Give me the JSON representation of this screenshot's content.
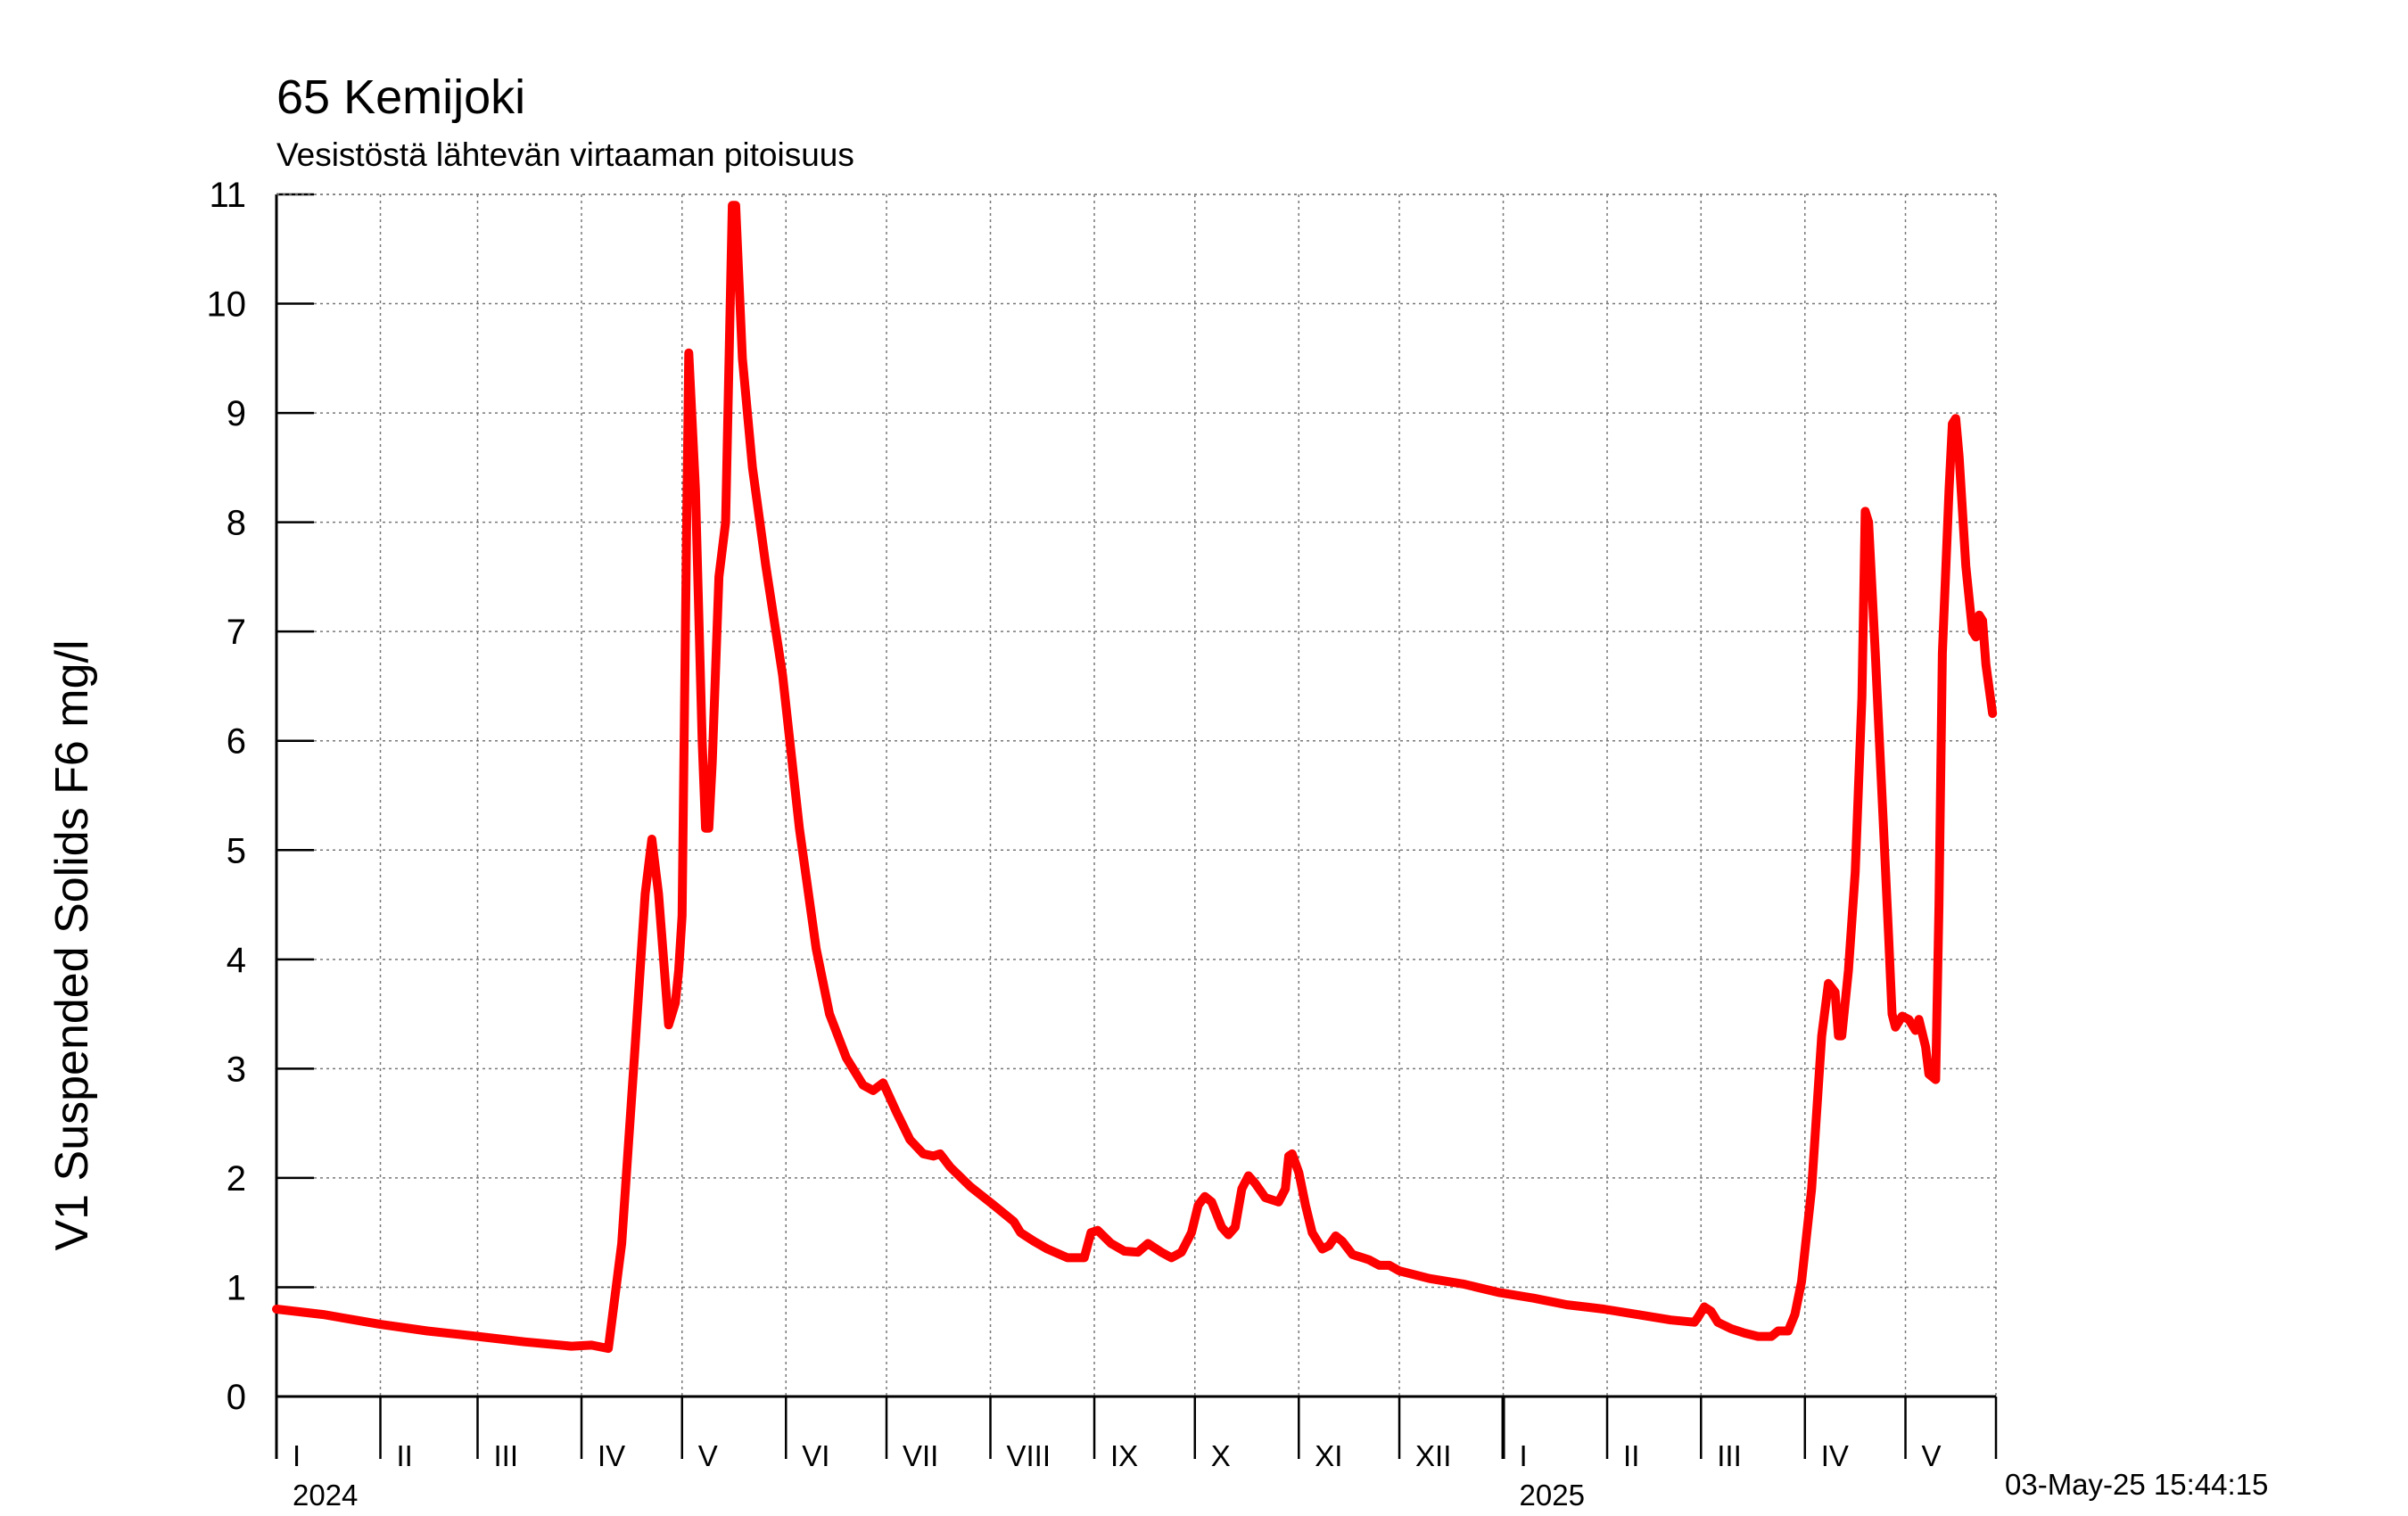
{
  "chart_data": {
    "type": "line",
    "title": "65 Kemijoki",
    "subtitle": "Vesistöstä lähtevän virtaaman pitoisuus",
    "ylabel": "V1 Suspended Solids F6 mg/l",
    "xlabel": "",
    "ylim": [
      0,
      11
    ],
    "yticks": [
      0,
      1,
      2,
      3,
      4,
      5,
      6,
      7,
      8,
      9,
      10,
      11
    ],
    "xlim": [
      "2024-01-01",
      "2025-05-03"
    ],
    "grid": true,
    "month_labels": [
      {
        "label": "I",
        "date": "2024-01-01"
      },
      {
        "label": "II",
        "date": "2024-02-01"
      },
      {
        "label": "III",
        "date": "2024-03-01"
      },
      {
        "label": "IV",
        "date": "2024-04-01"
      },
      {
        "label": "V",
        "date": "2024-05-01"
      },
      {
        "label": "VI",
        "date": "2024-06-01"
      },
      {
        "label": "VII",
        "date": "2024-07-01"
      },
      {
        "label": "VIII",
        "date": "2024-08-01"
      },
      {
        "label": "IX",
        "date": "2024-09-01"
      },
      {
        "label": "X",
        "date": "2024-10-01"
      },
      {
        "label": "XI",
        "date": "2024-11-01"
      },
      {
        "label": "XII",
        "date": "2024-12-01"
      },
      {
        "label": "I",
        "date": "2025-01-01"
      },
      {
        "label": "II",
        "date": "2025-02-01"
      },
      {
        "label": "III",
        "date": "2025-03-01"
      },
      {
        "label": "IV",
        "date": "2025-04-01"
      },
      {
        "label": "V",
        "date": "2025-05-01"
      }
    ],
    "year_labels": [
      {
        "label": "2024",
        "date": "2024-01-01"
      },
      {
        "label": "2025",
        "date": "2025-01-01"
      }
    ],
    "timestamp": "03-May-25 15:44:15",
    "series": [
      {
        "color": "#ff0000",
        "points": [
          [
            "2024-01-01",
            0.8
          ],
          [
            "2024-01-15",
            0.75
          ],
          [
            "2024-02-01",
            0.66
          ],
          [
            "2024-02-15",
            0.6
          ],
          [
            "2024-03-01",
            0.55
          ],
          [
            "2024-03-15",
            0.5
          ],
          [
            "2024-03-29",
            0.46
          ],
          [
            "2024-04-04",
            0.47
          ],
          [
            "2024-04-09",
            0.44
          ],
          [
            "2024-04-13",
            1.4
          ],
          [
            "2024-04-17",
            3.2
          ],
          [
            "2024-04-20",
            4.6
          ],
          [
            "2024-04-22",
            5.1
          ],
          [
            "2024-04-24",
            4.6
          ],
          [
            "2024-04-27",
            3.4
          ],
          [
            "2024-04-29",
            3.6
          ],
          [
            "2024-04-30",
            3.9
          ],
          [
            "2024-05-01",
            4.4
          ],
          [
            "2024-05-02",
            7.0
          ],
          [
            "2024-05-03",
            9.55
          ],
          [
            "2024-05-05",
            8.3
          ],
          [
            "2024-05-07",
            6.0
          ],
          [
            "2024-05-08",
            5.2
          ],
          [
            "2024-05-09",
            5.2
          ],
          [
            "2024-05-10",
            5.8
          ],
          [
            "2024-05-12",
            7.5
          ],
          [
            "2024-05-14",
            8.0
          ],
          [
            "2024-05-16",
            10.9
          ],
          [
            "2024-05-17",
            10.9
          ],
          [
            "2024-05-19",
            9.5
          ],
          [
            "2024-05-22",
            8.5
          ],
          [
            "2024-05-26",
            7.6
          ],
          [
            "2024-05-31",
            6.6
          ],
          [
            "2024-06-05",
            5.2
          ],
          [
            "2024-06-10",
            4.1
          ],
          [
            "2024-06-14",
            3.5
          ],
          [
            "2024-06-19",
            3.1
          ],
          [
            "2024-06-24",
            2.85
          ],
          [
            "2024-06-27",
            2.8
          ],
          [
            "2024-06-30",
            2.87
          ],
          [
            "2024-07-04",
            2.6
          ],
          [
            "2024-07-08",
            2.35
          ],
          [
            "2024-07-12",
            2.22
          ],
          [
            "2024-07-15",
            2.2
          ],
          [
            "2024-07-17",
            2.22
          ],
          [
            "2024-07-20",
            2.1
          ],
          [
            "2024-07-26",
            1.92
          ],
          [
            "2024-08-02",
            1.75
          ],
          [
            "2024-08-08",
            1.6
          ],
          [
            "2024-08-10",
            1.5
          ],
          [
            "2024-08-14",
            1.42
          ],
          [
            "2024-08-18",
            1.35
          ],
          [
            "2024-08-24",
            1.27
          ],
          [
            "2024-08-29",
            1.27
          ],
          [
            "2024-08-31",
            1.5
          ],
          [
            "2024-09-02",
            1.52
          ],
          [
            "2024-09-06",
            1.4
          ],
          [
            "2024-09-10",
            1.33
          ],
          [
            "2024-09-14",
            1.32
          ],
          [
            "2024-09-17",
            1.4
          ],
          [
            "2024-09-21",
            1.32
          ],
          [
            "2024-09-24",
            1.27
          ],
          [
            "2024-09-27",
            1.32
          ],
          [
            "2024-09-30",
            1.5
          ],
          [
            "2024-10-02",
            1.75
          ],
          [
            "2024-10-04",
            1.83
          ],
          [
            "2024-10-06",
            1.78
          ],
          [
            "2024-10-09",
            1.55
          ],
          [
            "2024-10-11",
            1.48
          ],
          [
            "2024-10-13",
            1.55
          ],
          [
            "2024-10-15",
            1.9
          ],
          [
            "2024-10-17",
            2.02
          ],
          [
            "2024-10-19",
            1.95
          ],
          [
            "2024-10-22",
            1.82
          ],
          [
            "2024-10-26",
            1.78
          ],
          [
            "2024-10-28",
            1.9
          ],
          [
            "2024-10-29",
            2.2
          ],
          [
            "2024-10-30",
            2.22
          ],
          [
            "2024-11-01",
            2.05
          ],
          [
            "2024-11-03",
            1.75
          ],
          [
            "2024-11-05",
            1.5
          ],
          [
            "2024-11-08",
            1.35
          ],
          [
            "2024-11-10",
            1.38
          ],
          [
            "2024-11-12",
            1.47
          ],
          [
            "2024-11-14",
            1.42
          ],
          [
            "2024-11-17",
            1.3
          ],
          [
            "2024-11-22",
            1.25
          ],
          [
            "2024-11-25",
            1.2
          ],
          [
            "2024-11-28",
            1.2
          ],
          [
            "2024-12-01",
            1.15
          ],
          [
            "2024-12-10",
            1.08
          ],
          [
            "2024-12-20",
            1.03
          ],
          [
            "2024-12-31",
            0.95
          ],
          [
            "2025-01-10",
            0.9
          ],
          [
            "2025-01-20",
            0.84
          ],
          [
            "2025-01-31",
            0.8
          ],
          [
            "2025-02-10",
            0.75
          ],
          [
            "2025-02-20",
            0.7
          ],
          [
            "2025-02-27",
            0.68
          ],
          [
            "2025-02-28",
            0.72
          ],
          [
            "2025-03-02",
            0.82
          ],
          [
            "2025-03-04",
            0.78
          ],
          [
            "2025-03-06",
            0.68
          ],
          [
            "2025-03-10",
            0.62
          ],
          [
            "2025-03-14",
            0.58
          ],
          [
            "2025-03-18",
            0.55
          ],
          [
            "2025-03-22",
            0.55
          ],
          [
            "2025-03-24",
            0.6
          ],
          [
            "2025-03-27",
            0.6
          ],
          [
            "2025-03-29",
            0.75
          ],
          [
            "2025-03-31",
            1.05
          ],
          [
            "2025-04-03",
            1.9
          ],
          [
            "2025-04-06",
            3.3
          ],
          [
            "2025-04-08",
            3.78
          ],
          [
            "2025-04-10",
            3.7
          ],
          [
            "2025-04-11",
            3.3
          ],
          [
            "2025-04-12",
            3.3
          ],
          [
            "2025-04-14",
            3.9
          ],
          [
            "2025-04-16",
            4.8
          ],
          [
            "2025-04-18",
            6.4
          ],
          [
            "2025-04-19",
            8.1
          ],
          [
            "2025-04-20",
            8.0
          ],
          [
            "2025-04-22",
            6.8
          ],
          [
            "2025-04-24",
            5.5
          ],
          [
            "2025-04-26",
            4.2
          ],
          [
            "2025-04-27",
            3.5
          ],
          [
            "2025-04-28",
            3.38
          ],
          [
            "2025-04-30",
            3.48
          ],
          [
            "2025-05-02",
            3.45
          ],
          [
            "2025-05-04",
            3.35
          ],
          [
            "2025-05-05",
            3.45
          ],
          [
            "2025-05-07",
            3.2
          ],
          [
            "2025-05-08",
            2.95
          ],
          [
            "2025-05-10",
            2.9
          ],
          [
            "2025-05-11",
            4.5
          ],
          [
            "2025-05-12",
            6.8
          ],
          [
            "2025-05-14",
            8.3
          ],
          [
            "2025-05-15",
            8.9
          ],
          [
            "2025-05-16",
            8.95
          ],
          [
            "2025-05-17",
            8.6
          ],
          [
            "2025-05-19",
            7.6
          ],
          [
            "2025-05-21",
            7.0
          ],
          [
            "2025-05-22",
            6.95
          ],
          [
            "2025-05-23",
            7.15
          ],
          [
            "2025-05-24",
            7.1
          ],
          [
            "2025-05-25",
            6.7
          ],
          [
            "2025-05-27",
            6.25
          ]
        ]
      }
    ]
  }
}
